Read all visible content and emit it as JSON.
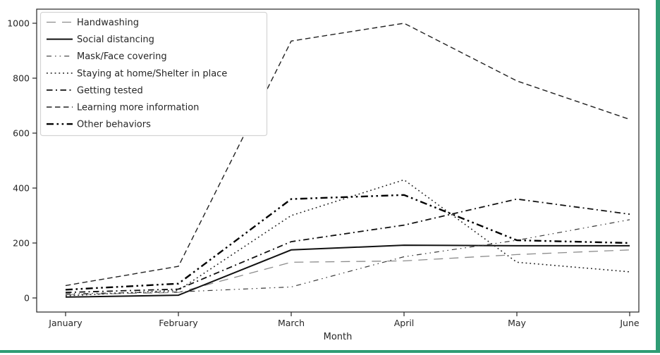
{
  "page": {
    "background": "#ffffff",
    "window_border_color": "#2f9c74"
  },
  "chart_data": {
    "type": "line",
    "title": "",
    "xlabel": "Month",
    "ylabel": "",
    "categories": [
      "January",
      "February",
      "March",
      "April",
      "May",
      "June"
    ],
    "yticks": [
      0,
      200,
      400,
      600,
      800,
      1000
    ],
    "ylim": [
      0,
      1000
    ],
    "grid": false,
    "legend_position": "upper-left",
    "axis_color": "#262626",
    "series": [
      {
        "name": "Handwashing",
        "style": "long-dash",
        "color": "#8c8c8c",
        "width": 1.3,
        "values": [
          12,
          20,
          130,
          135,
          158,
          175
        ]
      },
      {
        "name": "Social distancing",
        "style": "solid",
        "color": "#111111",
        "width": 2.0,
        "values": [
          3,
          10,
          175,
          192,
          190,
          190
        ]
      },
      {
        "name": "Mask/Face covering",
        "style": "dash-dot-dot",
        "color": "#3a3a3a",
        "width": 1.2,
        "values": [
          15,
          22,
          40,
          150,
          210,
          285
        ]
      },
      {
        "name": "Staying at home/Shelter in place",
        "style": "dotted",
        "color": "#222222",
        "width": 1.6,
        "values": [
          8,
          28,
          300,
          430,
          130,
          95
        ]
      },
      {
        "name": "Getting tested",
        "style": "dash-dot",
        "color": "#111111",
        "width": 1.8,
        "values": [
          20,
          32,
          205,
          265,
          360,
          305
        ]
      },
      {
        "name": "Learning more information",
        "style": "dashed",
        "color": "#222222",
        "width": 1.4,
        "values": [
          45,
          115,
          935,
          1000,
          790,
          650
        ]
      },
      {
        "name": "Other behaviors",
        "style": "dash-dot-dot-bold",
        "color": "#000000",
        "width": 2.4,
        "values": [
          30,
          52,
          360,
          375,
          210,
          200
        ]
      }
    ]
  }
}
